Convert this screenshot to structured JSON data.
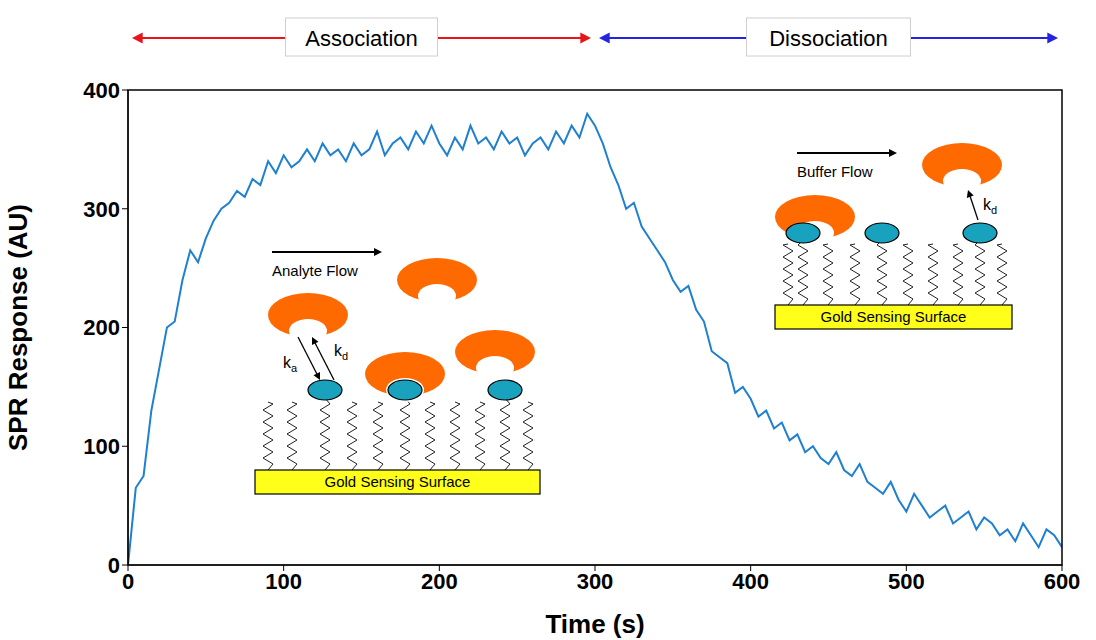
{
  "chart_data": {
    "type": "line",
    "x_label": "Time (s)",
    "y_label": "SPR Response (AU)",
    "xlim": [
      0,
      600
    ],
    "ylim": [
      0,
      400
    ],
    "xticks": [
      0,
      100,
      200,
      300,
      400,
      500,
      600
    ],
    "yticks": [
      0,
      100,
      200,
      300,
      400
    ],
    "grid": false,
    "color": "#1f80d0",
    "x": [
      0,
      5,
      10,
      15,
      20,
      25,
      30,
      35,
      40,
      45,
      50,
      55,
      60,
      65,
      70,
      75,
      80,
      85,
      90,
      95,
      100,
      105,
      110,
      115,
      120,
      125,
      130,
      135,
      140,
      145,
      150,
      155,
      160,
      165,
      170,
      175,
      180,
      185,
      190,
      195,
      200,
      205,
      210,
      215,
      220,
      225,
      230,
      235,
      240,
      245,
      250,
      255,
      260,
      265,
      270,
      275,
      280,
      285,
      290,
      295,
      300,
      305,
      310,
      315,
      320,
      325,
      330,
      335,
      340,
      345,
      350,
      355,
      360,
      365,
      370,
      375,
      380,
      385,
      390,
      395,
      400,
      405,
      410,
      415,
      420,
      425,
      430,
      435,
      440,
      445,
      450,
      455,
      460,
      465,
      470,
      475,
      480,
      485,
      490,
      495,
      500,
      505,
      510,
      515,
      520,
      525,
      530,
      535,
      540,
      545,
      550,
      555,
      560,
      565,
      570,
      575,
      580,
      585,
      590,
      595,
      600
    ],
    "values": [
      0,
      65,
      75,
      130,
      165,
      200,
      205,
      240,
      265,
      255,
      275,
      290,
      300,
      305,
      315,
      310,
      325,
      320,
      340,
      330,
      345,
      335,
      340,
      350,
      340,
      355,
      345,
      350,
      340,
      355,
      345,
      350,
      365,
      345,
      355,
      360,
      350,
      365,
      355,
      370,
      355,
      345,
      360,
      350,
      370,
      355,
      360,
      350,
      365,
      355,
      360,
      345,
      355,
      360,
      350,
      365,
      355,
      370,
      360,
      380,
      370,
      355,
      335,
      320,
      300,
      305,
      285,
      275,
      265,
      255,
      240,
      230,
      235,
      215,
      205,
      180,
      175,
      170,
      145,
      150,
      140,
      125,
      130,
      115,
      120,
      105,
      110,
      95,
      100,
      90,
      85,
      95,
      80,
      75,
      85,
      70,
      65,
      60,
      70,
      55,
      45,
      60,
      50,
      40,
      45,
      50,
      35,
      40,
      45,
      30,
      40,
      35,
      25,
      30,
      20,
      35,
      25,
      15,
      30,
      25,
      15
    ],
    "phases": [
      {
        "label": "Association",
        "start": 0,
        "end": 300,
        "color": "#e8141b"
      },
      {
        "label": "Dissociation",
        "start": 300,
        "end": 600,
        "color": "#2424e0"
      }
    ],
    "insets": [
      {
        "flow_label": "Analyte Flow",
        "surface_label": "Gold Sensing Surface",
        "rate_labels": [
          {
            "symbol": "k",
            "subscript": "a"
          },
          {
            "symbol": "k",
            "subscript": "d"
          }
        ]
      },
      {
        "flow_label": "Buffer Flow",
        "surface_label": "Gold Sensing Surface",
        "rate_labels": [
          {
            "symbol": "k",
            "subscript": "d"
          }
        ]
      }
    ]
  }
}
